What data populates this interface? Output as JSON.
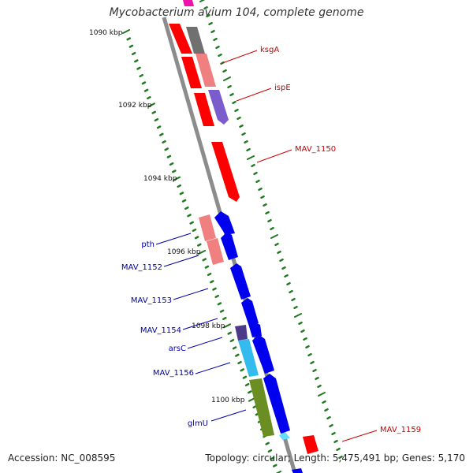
{
  "title": "Mycobacterium avium 104, complete genome",
  "accession": "Accession: NC_008595",
  "topology": "Topology: circular; Length: 5,475,491 bp; Genes: 5,170",
  "colors": {
    "backbone": "#8c8c8c",
    "tick": "#1e7a1e",
    "forward_label": "#cc0000",
    "reverse_label": "#0000aa",
    "red_gene": "#ff0000",
    "pink_gene": "#f08080",
    "gray_gene": "#707070",
    "purple_gene": "#7a5ccc",
    "blue_gene": "#0000ee",
    "dark_purple_gene": "#4b3a8a",
    "cyan_gene": "#33bbee",
    "olive_gene": "#6b8e23",
    "light_cyan_gene": "#66ddff"
  },
  "kbp_labels": [
    "1090 kbp",
    "1092 kbp",
    "1094 kbp",
    "1096 kbp",
    "1098 kbp",
    "1100 kbp"
  ],
  "forward_gene_labels": [
    "ksgA",
    "ispE",
    "MAV_1150",
    "MAV_1159"
  ],
  "reverse_gene_labels": [
    "pth",
    "MAV_1152",
    "MAV_1153",
    "MAV_1154",
    "arsC",
    "MAV_1156",
    "glmU"
  ]
}
